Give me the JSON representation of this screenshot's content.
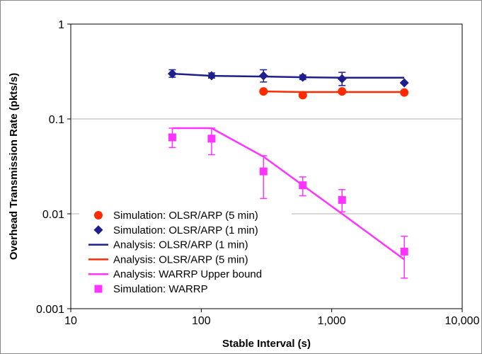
{
  "chart_data": {
    "type": "line",
    "title": "",
    "xlabel": "Stable Interval (s)",
    "ylabel": "Overhead Transmission Rate (pkts/s)",
    "xscale": "log",
    "yscale": "log",
    "xlim": [
      10,
      10000
    ],
    "ylim": [
      0.001,
      1
    ],
    "x_ticks": [
      10,
      100,
      1000,
      10000
    ],
    "x_tick_labels": [
      "10",
      "100",
      "1,000",
      "10,000"
    ],
    "y_ticks": [
      0.001,
      0.01,
      0.1,
      1
    ],
    "y_tick_labels": [
      "0.001",
      "0.01",
      "0.1",
      "1"
    ],
    "grid": "horizontal major gridlines",
    "legend_position": "lower-left",
    "series": [
      {
        "name": "Simulation: OLSR/ARP (5 min)",
        "kind": "points",
        "marker": "circle",
        "color": "#ff2a00",
        "x": [
          300,
          600,
          1200,
          3600
        ],
        "y": [
          0.195,
          0.178,
          0.195,
          0.19
        ]
      },
      {
        "name": "Simulation: OLSR/ARP (1 min)",
        "kind": "points",
        "marker": "diamond",
        "color": "#1e1e8c",
        "x": [
          60,
          120,
          300,
          600,
          1200,
          3600
        ],
        "y": [
          0.3,
          0.285,
          0.285,
          0.275,
          0.265,
          0.24
        ],
        "err_low": [
          0.275,
          0.27,
          0.245,
          0.26,
          0.225,
          0.24
        ],
        "err_high": [
          0.33,
          0.305,
          0.33,
          0.29,
          0.31,
          0.24
        ]
      },
      {
        "name": "Analysis: OLSR/ARP (1 min)",
        "kind": "line",
        "color": "#1e1e8c",
        "x": [
          60,
          120,
          300,
          600,
          1200,
          3600
        ],
        "y": [
          0.3,
          0.285,
          0.28,
          0.275,
          0.272,
          0.272
        ]
      },
      {
        "name": "Analysis: OLSR/ARP (5 min)",
        "kind": "line",
        "color": "#ff2a00",
        "x": [
          300,
          600,
          1200,
          3600
        ],
        "y": [
          0.195,
          0.192,
          0.192,
          0.192
        ]
      },
      {
        "name": "Analysis: WARRP Upper bound",
        "kind": "line",
        "color": "#ff33ff",
        "x": [
          60,
          120,
          300,
          600,
          1200,
          3600
        ],
        "y": [
          0.08,
          0.08,
          0.04,
          0.02,
          0.01,
          0.0033
        ]
      },
      {
        "name": "Simulation: WARRP",
        "kind": "points",
        "marker": "square",
        "color": "#ff33ff",
        "x": [
          60,
          120,
          300,
          600,
          1200,
          3600
        ],
        "y": [
          0.064,
          0.062,
          0.028,
          0.02,
          0.014,
          0.004
        ],
        "err_low": [
          0.05,
          0.042,
          0.0145,
          0.0155,
          0.0105,
          0.0021
        ],
        "err_high": [
          0.08,
          0.08,
          0.041,
          0.0245,
          0.018,
          0.0058
        ]
      }
    ]
  }
}
